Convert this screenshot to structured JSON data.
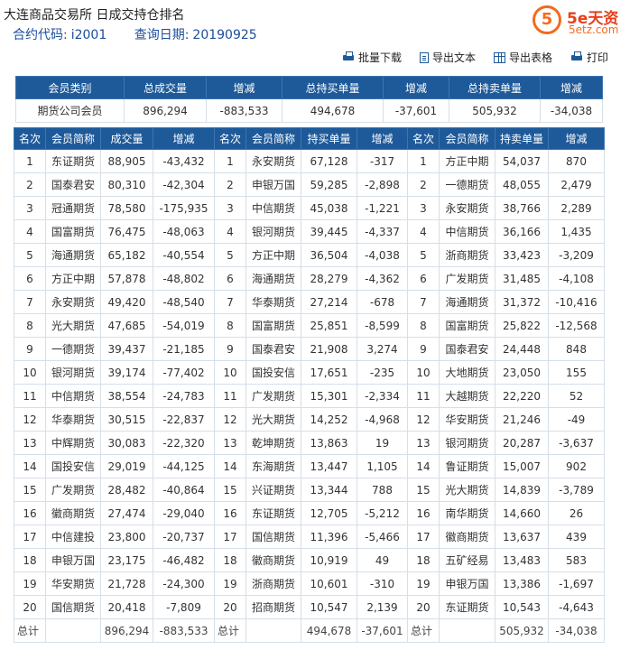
{
  "header": {
    "title": "大连商品交易所 日成交持仓排名",
    "contract_label": "合约代码:",
    "contract_value": "i2001",
    "date_label": "查询日期:",
    "date_value": "20190925"
  },
  "logo": {
    "brand": "5e天资",
    "url": "5etz.com",
    "mark": "5"
  },
  "toolbar": {
    "batch_download": "批量下载",
    "export_text": "导出文本",
    "export_table": "导出表格",
    "print": "打印"
  },
  "summary": {
    "headers": [
      "会员类别",
      "总成交量",
      "增减",
      "总持买单量",
      "增减",
      "总持卖单量",
      "增减"
    ],
    "row": [
      "期货公司会员",
      "896,294",
      "-883,533",
      "494,678",
      "-37,601",
      "505,932",
      "-34,038"
    ]
  },
  "ranking": {
    "headers": [
      "名次",
      "会员简称",
      "成交量",
      "增减",
      "名次",
      "会员简称",
      "持买单量",
      "增减",
      "名次",
      "会员简称",
      "持卖单量",
      "增减"
    ],
    "rows": [
      [
        "1",
        "东证期货",
        "88,905",
        "-43,432",
        "1",
        "永安期货",
        "67,128",
        "-317",
        "1",
        "方正中期",
        "54,037",
        "870"
      ],
      [
        "2",
        "国泰君安",
        "80,310",
        "-42,304",
        "2",
        "申银万国",
        "59,285",
        "-2,898",
        "2",
        "一德期货",
        "48,055",
        "2,479"
      ],
      [
        "3",
        "冠通期货",
        "78,580",
        "-175,935",
        "3",
        "中信期货",
        "45,038",
        "-1,221",
        "3",
        "永安期货",
        "38,766",
        "2,289"
      ],
      [
        "4",
        "国富期货",
        "76,475",
        "-48,063",
        "4",
        "银河期货",
        "39,445",
        "-4,337",
        "4",
        "中信期货",
        "36,166",
        "1,435"
      ],
      [
        "5",
        "海通期货",
        "65,182",
        "-40,554",
        "5",
        "方正中期",
        "36,504",
        "-4,038",
        "5",
        "浙商期货",
        "33,423",
        "-3,209"
      ],
      [
        "6",
        "方正中期",
        "57,878",
        "-48,802",
        "6",
        "海通期货",
        "28,279",
        "-4,362",
        "6",
        "广发期货",
        "31,485",
        "-4,108"
      ],
      [
        "7",
        "永安期货",
        "49,420",
        "-48,540",
        "7",
        "华泰期货",
        "27,214",
        "-678",
        "7",
        "海通期货",
        "31,372",
        "-10,416"
      ],
      [
        "8",
        "光大期货",
        "47,685",
        "-54,019",
        "8",
        "国富期货",
        "25,851",
        "-8,599",
        "8",
        "国富期货",
        "25,822",
        "-12,568"
      ],
      [
        "9",
        "一德期货",
        "39,437",
        "-21,185",
        "9",
        "国泰君安",
        "21,908",
        "3,274",
        "9",
        "国泰君安",
        "24,448",
        "848"
      ],
      [
        "10",
        "银河期货",
        "39,174",
        "-77,402",
        "10",
        "国投安信",
        "17,651",
        "-235",
        "10",
        "大地期货",
        "23,050",
        "155"
      ],
      [
        "11",
        "中信期货",
        "38,554",
        "-24,783",
        "11",
        "广发期货",
        "15,301",
        "-2,334",
        "11",
        "大越期货",
        "22,220",
        "52"
      ],
      [
        "12",
        "华泰期货",
        "30,515",
        "-22,837",
        "12",
        "光大期货",
        "14,252",
        "-4,968",
        "12",
        "华安期货",
        "21,246",
        "-49"
      ],
      [
        "13",
        "中辉期货",
        "30,083",
        "-22,320",
        "13",
        "乾坤期货",
        "13,863",
        "19",
        "13",
        "银河期货",
        "20,287",
        "-3,637"
      ],
      [
        "14",
        "国投安信",
        "29,019",
        "-44,125",
        "14",
        "东海期货",
        "13,447",
        "1,105",
        "14",
        "鲁证期货",
        "15,007",
        "902"
      ],
      [
        "15",
        "广发期货",
        "28,482",
        "-40,864",
        "15",
        "兴证期货",
        "13,344",
        "788",
        "15",
        "光大期货",
        "14,839",
        "-3,789"
      ],
      [
        "16",
        "徽商期货",
        "27,474",
        "-29,040",
        "16",
        "东证期货",
        "12,705",
        "-5,212",
        "16",
        "南华期货",
        "14,660",
        "26"
      ],
      [
        "17",
        "中信建投",
        "23,800",
        "-20,737",
        "17",
        "国信期货",
        "11,396",
        "-5,466",
        "17",
        "徽商期货",
        "13,637",
        "439"
      ],
      [
        "18",
        "申银万国",
        "23,175",
        "-46,482",
        "18",
        "徽商期货",
        "10,919",
        "49",
        "18",
        "五矿经易",
        "13,483",
        "583"
      ],
      [
        "19",
        "华安期货",
        "21,728",
        "-24,300",
        "19",
        "浙商期货",
        "10,601",
        "-310",
        "19",
        "申银万国",
        "13,386",
        "-1,697"
      ],
      [
        "20",
        "国信期货",
        "20,418",
        "-7,809",
        "20",
        "招商期货",
        "10,547",
        "2,139",
        "20",
        "东证期货",
        "10,543",
        "-4,643"
      ]
    ],
    "total": [
      "总计",
      "",
      "896,294",
      "-883,533",
      "总计",
      "",
      "494,678",
      "-37,601",
      "总计",
      "",
      "505,932",
      "-34,038"
    ]
  }
}
